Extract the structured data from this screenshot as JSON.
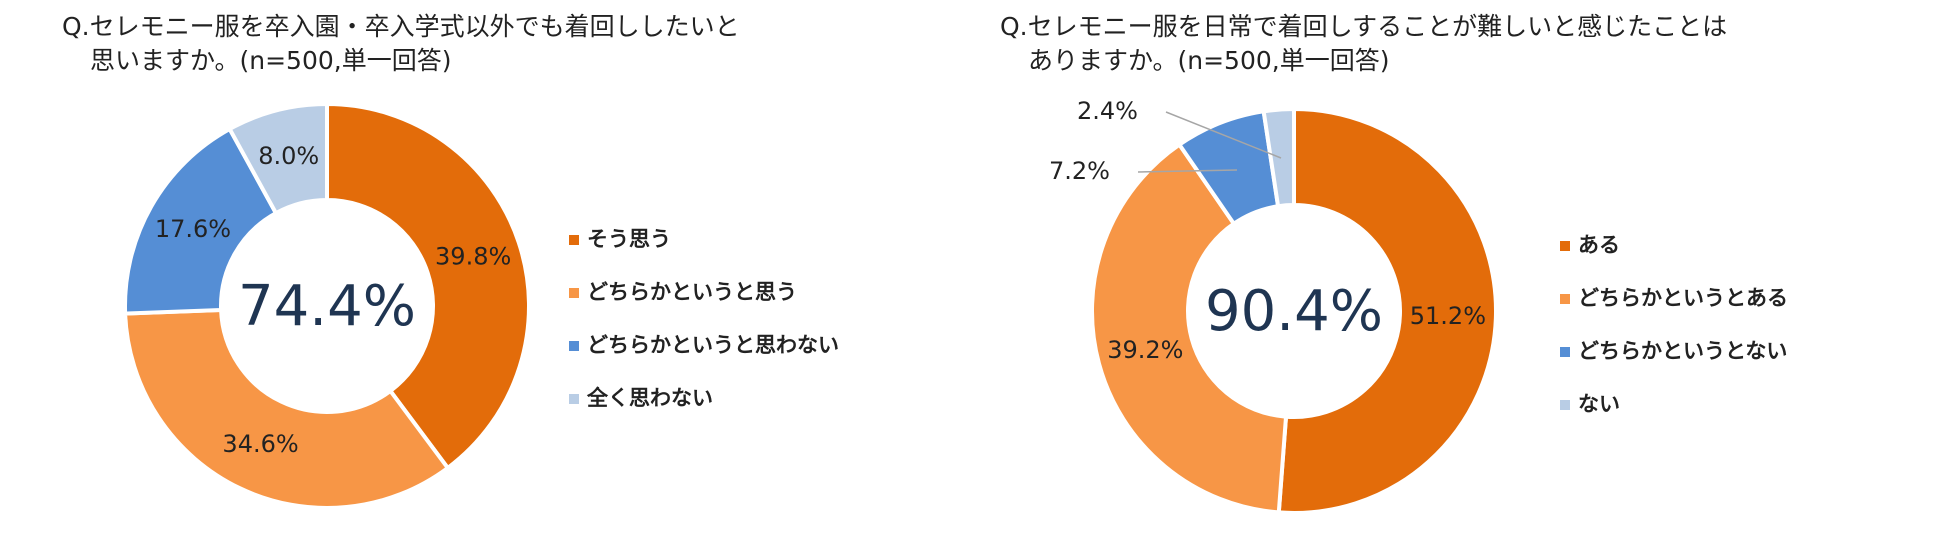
{
  "chart_data": [
    {
      "type": "donut",
      "title": [
        "Q.セレモニー服を卒入園・卒入学式以外でも着回ししたいと",
        "思いますか。(n=500,単一回答)"
      ],
      "center_label": "74.4%",
      "categories": [
        "そう思う",
        "どちらかというと思う",
        "どちらかというと思わない",
        "全く思わない"
      ],
      "values": [
        39.8,
        34.6,
        17.6,
        8.0
      ],
      "value_labels": [
        "39.8%",
        "34.6%",
        "17.6%",
        "8.0%"
      ],
      "colors": [
        "#E36C0A",
        "#F79646",
        "#558ED5",
        "#B9CDE5"
      ],
      "legend": "right"
    },
    {
      "type": "donut",
      "title": [
        "Q.セレモニー服を日常で着回しすることが難しいと感じたことは",
        "ありますか。(n=500,単一回答)"
      ],
      "center_label": "90.4%",
      "categories": [
        "ある",
        "どちらかというとある",
        "どちらかというとない",
        "ない"
      ],
      "values": [
        51.2,
        39.2,
        7.2,
        2.4
      ],
      "value_labels": [
        "51.2%",
        "39.2%",
        "7.2%",
        "2.4%"
      ],
      "colors": [
        "#E36C0A",
        "#F79646",
        "#558ED5",
        "#B9CDE5"
      ],
      "legend": "right"
    }
  ]
}
